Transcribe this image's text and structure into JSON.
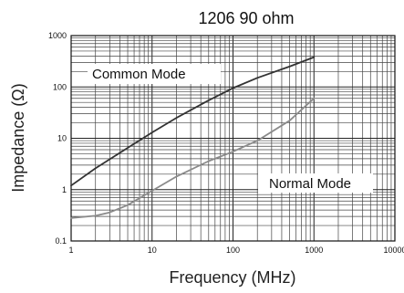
{
  "chart_data": {
    "type": "line",
    "title": "1206 90 ohm",
    "xlabel": "Frequency (MHz)",
    "ylabel": "Impedance (Ω)",
    "xscale": "log",
    "yscale": "log",
    "xlim": [
      1,
      10000
    ],
    "ylim": [
      0.1,
      1000
    ],
    "grid": true,
    "x_tick_labels": [
      "1",
      "10",
      "100",
      "1000",
      "10000"
    ],
    "y_tick_labels": [
      "0.1",
      "1",
      "10",
      "100",
      "1000"
    ],
    "annotations": [
      "Common Mode",
      "Normal Mode"
    ],
    "series": [
      {
        "name": "Common Mode",
        "color": "#333333",
        "x": [
          1,
          2,
          3,
          5,
          10,
          20,
          50,
          100,
          200,
          500,
          1000
        ],
        "y": [
          1.2,
          2.6,
          3.9,
          6.5,
          13,
          25,
          55,
          95,
          150,
          250,
          380
        ]
      },
      {
        "name": "Normal Mode",
        "color": "#8a8a8a",
        "x": [
          1,
          2,
          3,
          5,
          10,
          20,
          50,
          100,
          200,
          500,
          1000
        ],
        "y": [
          0.28,
          0.31,
          0.36,
          0.5,
          0.95,
          1.8,
          3.6,
          5.5,
          9,
          22,
          60
        ]
      }
    ]
  }
}
